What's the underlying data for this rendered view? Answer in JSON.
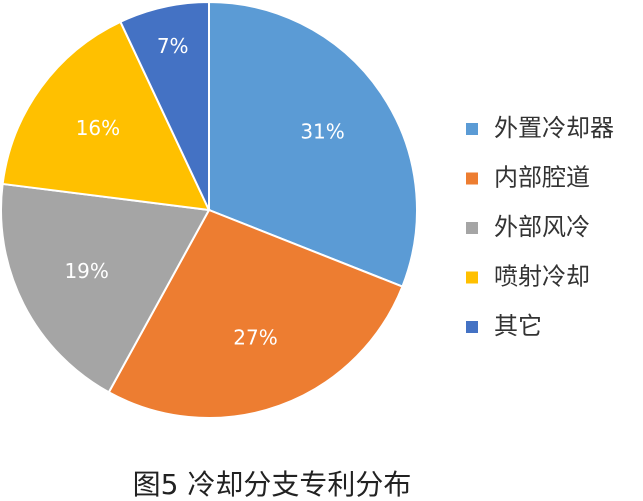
{
  "chart_data": {
    "type": "pie",
    "title": "图5 冷却分支专利分布",
    "categories": [
      "外置冷却器",
      "内部腔道",
      "外部风冷",
      "喷射冷却",
      "其它"
    ],
    "values": [
      31,
      27,
      19,
      16,
      7
    ],
    "value_labels": [
      "31%",
      "27%",
      "19%",
      "16%",
      "7%"
    ],
    "colors": [
      "#5b9bd5",
      "#ed7d31",
      "#a5a5a5",
      "#ffc000",
      "#4472c4"
    ],
    "legend": "right"
  }
}
